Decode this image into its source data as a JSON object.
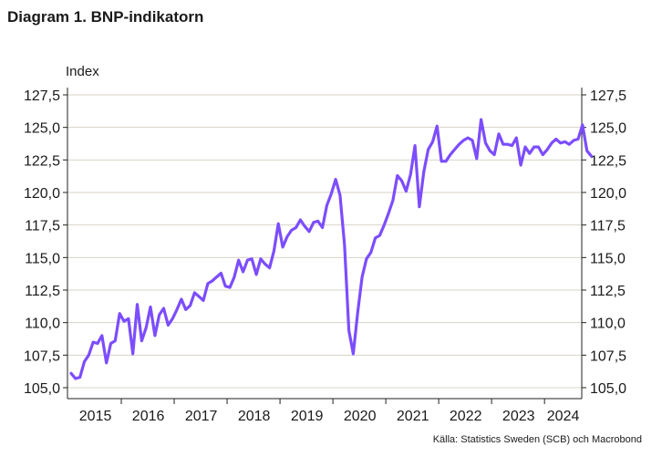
{
  "title": "Diagram 1. BNP-indikatorn",
  "source": "Källa: Statistics Sweden (SCB)  och Macrobond",
  "colors": {
    "line": "#7c4dff",
    "grid": "#d9d3c6",
    "axis": "#222222"
  },
  "chart_data": {
    "type": "line",
    "ylabel": "Index",
    "ylim": [
      105.0,
      127.5
    ],
    "y_ticks": [
      "105,0",
      "107,5",
      "110,0",
      "112,5",
      "115,0",
      "117,5",
      "120,0",
      "122,5",
      "125,0",
      "127,5"
    ],
    "y_tick_values": [
      105.0,
      107.5,
      110.0,
      112.5,
      115.0,
      117.5,
      120.0,
      122.5,
      125.0,
      127.5
    ],
    "x_ticks": [
      "2015",
      "2016",
      "2017",
      "2018",
      "2019",
      "2020",
      "2021",
      "2022",
      "2023",
      "2024"
    ],
    "x_range": [
      "2015-01",
      "2024-08"
    ],
    "series": [
      {
        "x_start": "2015-01",
        "frequency": "monthly",
        "values": [
          106.1,
          105.7,
          105.8,
          107.0,
          107.5,
          108.5,
          108.4,
          109.0,
          106.9,
          108.4,
          108.6,
          110.7,
          110.1,
          110.3,
          107.6,
          111.4,
          108.6,
          109.6,
          111.2,
          109.0,
          110.6,
          111.1,
          109.8,
          110.3,
          111.0,
          111.8,
          111.0,
          111.3,
          112.3,
          112.0,
          111.7,
          113.0,
          113.2,
          113.5,
          113.8,
          112.8,
          112.7,
          113.5,
          114.8,
          113.9,
          114.8,
          114.9,
          113.7,
          114.9,
          114.5,
          114.2,
          115.5,
          117.6,
          115.8,
          116.6,
          117.1,
          117.3,
          117.9,
          117.4,
          117.0,
          117.7,
          117.8,
          117.3,
          119.0,
          119.9,
          121.0,
          119.8,
          116.0,
          109.4,
          107.6,
          110.8,
          113.5,
          114.9,
          115.4,
          116.5,
          116.7,
          117.5,
          118.4,
          119.4,
          121.3,
          120.9,
          120.1,
          121.4,
          123.6,
          118.9,
          121.6,
          123.3,
          123.9,
          125.1,
          122.4,
          122.4,
          122.9,
          123.3,
          123.7,
          124.0,
          124.2,
          124.0,
          122.6,
          125.6,
          123.8,
          123.2,
          122.9,
          124.5,
          123.7,
          123.7,
          123.6,
          124.2,
          122.1,
          123.5,
          123.0,
          123.5,
          123.5,
          122.9,
          123.3,
          123.8,
          124.1,
          123.8,
          123.9,
          123.7,
          124.0,
          124.1,
          125.2,
          123.2,
          122.8
        ]
      }
    ],
    "grid": "horizontal",
    "legend": "none"
  }
}
